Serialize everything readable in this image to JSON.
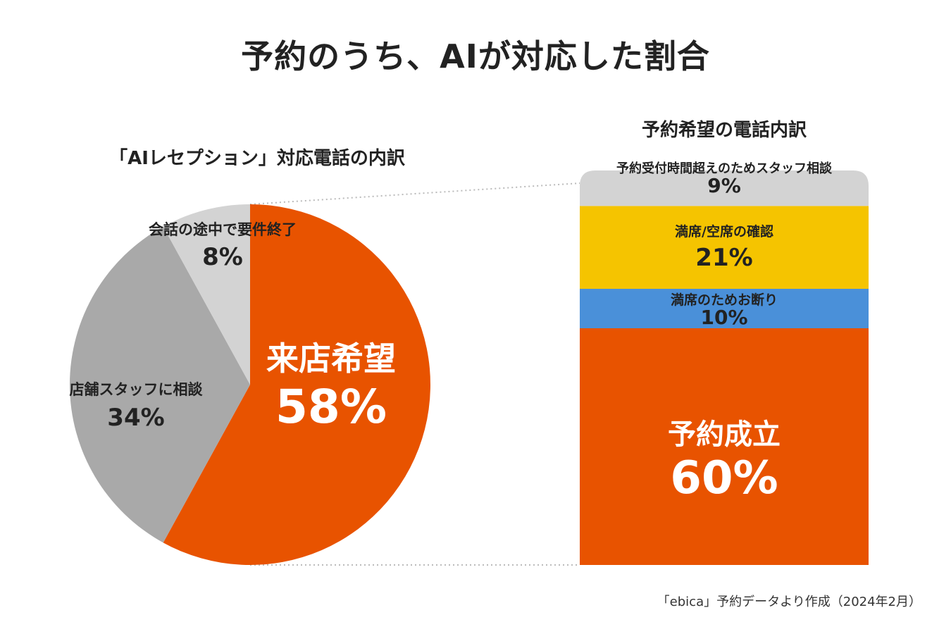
{
  "title": "予約のうち、AIが対応した割合",
  "source": "「ebica」予約データより作成（2024年2月）",
  "chart_data": [
    {
      "type": "pie",
      "title": "「AIレセプション」対応電話の内訳",
      "slices": [
        {
          "name": "来店希望",
          "value": 58,
          "label": "58%",
          "color": "#E85300"
        },
        {
          "name": "店舗スタッフに相談",
          "value": 34,
          "label": "34%",
          "color": "#A9A9A9"
        },
        {
          "name": "会話の途中で要件終了",
          "value": 8,
          "label": "8%",
          "color": "#D3D3D3"
        }
      ]
    },
    {
      "type": "bar",
      "stacked": true,
      "title": "予約希望の電話内訳",
      "segments": [
        {
          "name": "予約成立",
          "value": 60,
          "label": "60%",
          "color": "#E85300"
        },
        {
          "name": "満席のためお断り",
          "value": 10,
          "label": "10%",
          "color": "#4A90D9"
        },
        {
          "name": "満席/空席の確認",
          "value": 21,
          "label": "21%",
          "color": "#F5C400"
        },
        {
          "name": "予約受付時間超えのためスタッフ相談",
          "value": 9,
          "label": "9%",
          "color": "#D3D3D3"
        }
      ]
    }
  ]
}
